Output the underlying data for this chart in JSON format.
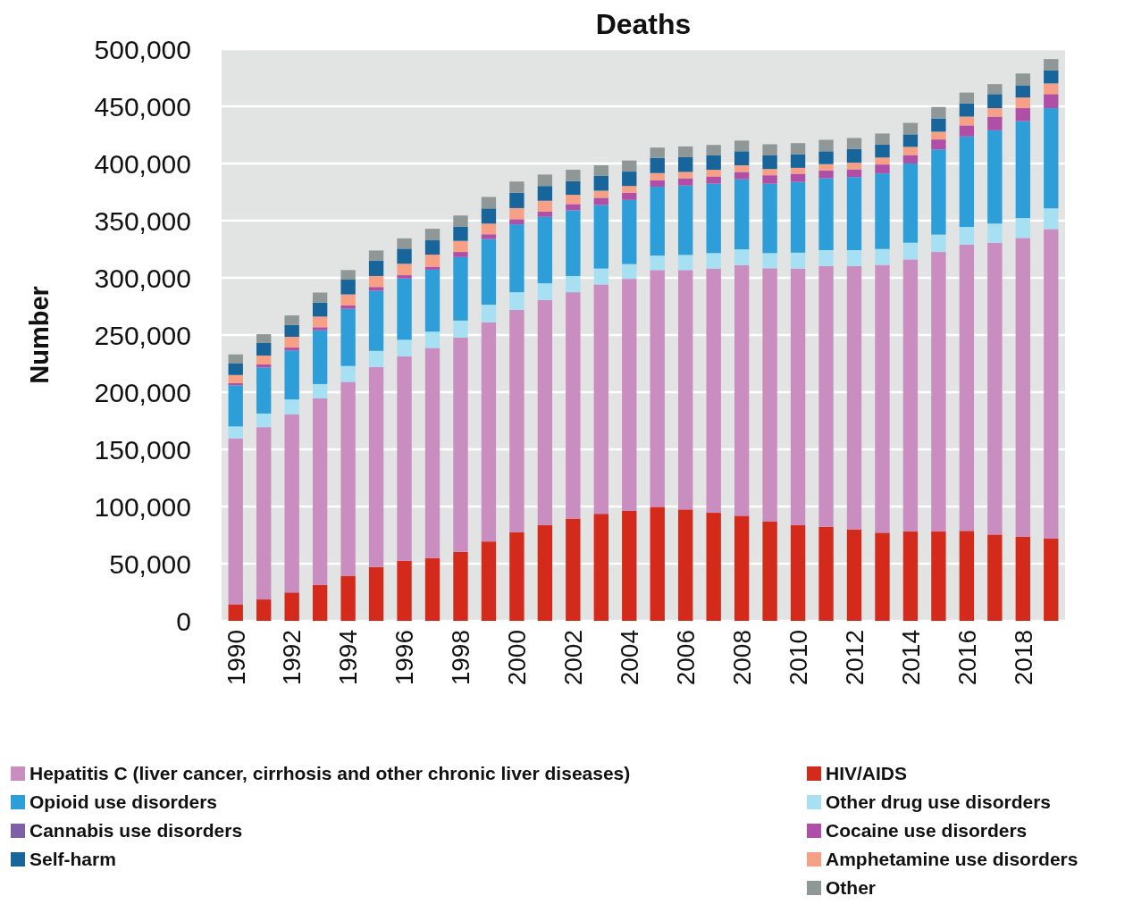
{
  "chart_data": {
    "type": "bar",
    "title": "Deaths",
    "ylabel": "Number",
    "stacked": true,
    "grid": "y",
    "legend": "bottom",
    "categories": [
      "1990",
      null,
      "1992",
      null,
      "1994",
      null,
      "1996",
      null,
      "1998",
      null,
      "2000",
      null,
      "2002",
      null,
      "2004",
      null,
      "2006",
      null,
      "2008",
      null,
      "2010",
      null,
      "2012",
      null,
      "2014",
      null,
      "2016",
      null,
      "2018",
      null
    ],
    "ylim": [
      0,
      500000
    ],
    "yticks": [
      {
        "value": 0,
        "label": "0"
      },
      {
        "value": 50000,
        "label": "50,000"
      },
      {
        "value": 100000,
        "label": "100,000"
      },
      {
        "value": 150000,
        "label": "150,000"
      },
      {
        "value": 200000,
        "label": "200,000"
      },
      {
        "value": 250000,
        "label": "250,000"
      },
      {
        "value": 300000,
        "label": "300,000"
      },
      {
        "value": 350000,
        "label": "350,000"
      },
      {
        "value": 400000,
        "label": "400,000"
      },
      {
        "value": 450000,
        "label": "450,000"
      },
      {
        "value": 500000,
        "label": "500,000"
      }
    ],
    "series": [
      {
        "name": "HIV/AIDS",
        "color": "#d42a1c",
        "values": [
          14500,
          18700,
          24800,
          31300,
          39400,
          47100,
          52600,
          54800,
          60300,
          69400,
          77400,
          83900,
          89400,
          93600,
          96100,
          99700,
          97400,
          94500,
          91900,
          87100,
          83900,
          82300,
          80000,
          77100,
          78100,
          78100,
          78700,
          75500,
          73600,
          71900
        ]
      },
      {
        "name": "Hepatitis C (liver cancer, cirrhosis and other chronic liver diseases)",
        "color": "#c98dbf",
        "values": [
          145000,
          150700,
          155900,
          163200,
          169600,
          174900,
          178700,
          183900,
          187500,
          191600,
          194600,
          196800,
          198000,
          200600,
          203000,
          207100,
          209400,
          213600,
          219100,
          221300,
          224200,
          228000,
          230300,
          234200,
          238000,
          244500,
          250400,
          255200,
          261300,
          270700
        ]
      },
      {
        "name": "Other drug use disorders",
        "color": "#a8e0f3",
        "values": [
          10500,
          11900,
          12900,
          12600,
          13900,
          14100,
          14500,
          14200,
          14800,
          15500,
          15400,
          14500,
          14200,
          13900,
          12900,
          12600,
          13200,
          13500,
          13900,
          13200,
          13900,
          13900,
          13900,
          13900,
          14600,
          15200,
          15400,
          16700,
          17400,
          18100
        ]
      },
      {
        "name": "Opioid use disorders",
        "color": "#2e9ed9",
        "values": [
          36000,
          40300,
          42900,
          47100,
          50000,
          52600,
          53600,
          54200,
          55500,
          57400,
          59400,
          58100,
          57500,
          55500,
          56100,
          60300,
          60700,
          60700,
          61300,
          60700,
          61900,
          62900,
          63900,
          66100,
          69300,
          74500,
          79100,
          81600,
          84800,
          87700
        ]
      },
      {
        "name": "Cocaine use disorders",
        "color": "#b04fa6",
        "values": [
          2000,
          2600,
          2500,
          2600,
          2900,
          3300,
          2900,
          2600,
          4500,
          4200,
          4500,
          4800,
          5400,
          6400,
          6400,
          5800,
          6400,
          6400,
          6400,
          7400,
          7100,
          6800,
          6800,
          7800,
          7400,
          8700,
          9700,
          12000,
          11300,
          12300
        ]
      },
      {
        "name": "Cannabis use disorders",
        "color": "#7f5fa8",
        "values": [
          0,
          0,
          0,
          0,
          0,
          0,
          0,
          0,
          0,
          0,
          0,
          0,
          0,
          0,
          0,
          0,
          0,
          0,
          0,
          0,
          0,
          0,
          0,
          0,
          0,
          0,
          0,
          0,
          0,
          0
        ]
      },
      {
        "name": "Amphetamine use disorders",
        "color": "#f7a086",
        "values": [
          7000,
          7800,
          9400,
          9300,
          9700,
          9600,
          10000,
          10600,
          9700,
          9300,
          9700,
          9300,
          8100,
          6200,
          5800,
          6100,
          5500,
          5800,
          5800,
          5500,
          5200,
          5500,
          5800,
          6100,
          7100,
          6800,
          7700,
          7400,
          9300,
          9300
        ]
      },
      {
        "name": "Self-harm",
        "color": "#17659a",
        "values": [
          10000,
          11000,
          10300,
          12300,
          12900,
          13600,
          13200,
          12900,
          12600,
          13300,
          13500,
          12900,
          11900,
          12900,
          12600,
          13300,
          12900,
          12600,
          12300,
          11900,
          11900,
          11300,
          11900,
          11300,
          11000,
          11600,
          11600,
          12300,
          10700,
          11600
        ]
      },
      {
        "name": "Other",
        "color": "#8f9896",
        "values": [
          8000,
          7700,
          8400,
          8700,
          8400,
          8700,
          9000,
          9700,
          9600,
          10000,
          9700,
          10000,
          10000,
          9300,
          9700,
          9000,
          9400,
          9100,
          9300,
          9700,
          9700,
          10000,
          9700,
          9700,
          10000,
          10000,
          9400,
          8700,
          10300,
          9700
        ]
      }
    ]
  }
}
